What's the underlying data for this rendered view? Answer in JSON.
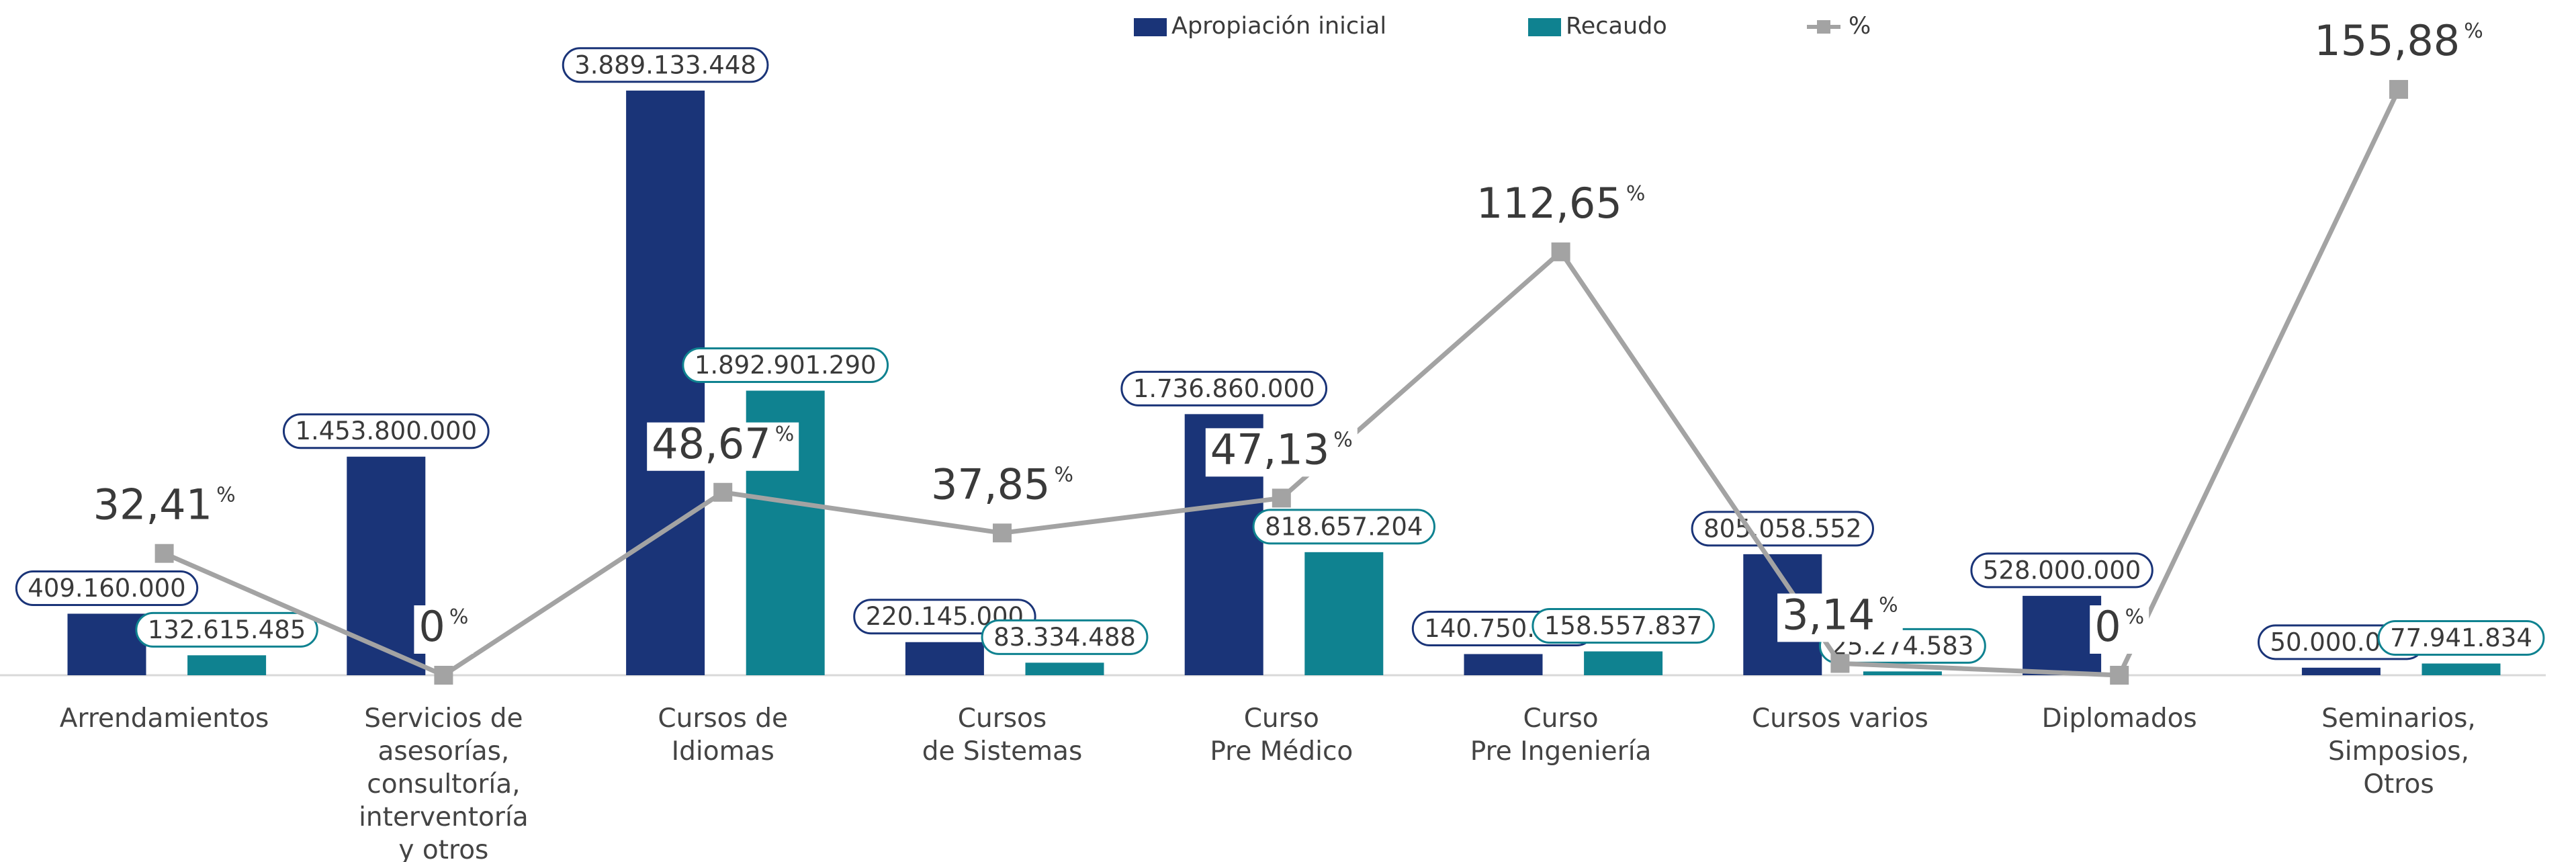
{
  "chart_data": {
    "type": "bar-line",
    "categories": [
      "Arrendamientos",
      "Servicios de\nasesorías,\nconsultoría,\ninterventoría\ny otros",
      "Cursos de\nIdiomas",
      "Cursos\nde Sistemas",
      "Curso\nPre Médico",
      "Curso\nPre Ingeniería",
      "Cursos varios",
      "Diplomados",
      "Seminarios,\nSimposios,\nOtros"
    ],
    "series": [
      {
        "name": "Apropiación inicial",
        "color": "#1a3478",
        "type": "bar",
        "values": [
          409160000,
          1453800000,
          3889133448,
          220145000,
          1736860000,
          140750000,
          805058552,
          528000000,
          50000000
        ],
        "value_labels": [
          "409.160.000",
          "1.453.800.000",
          "3.889.133.448",
          "220.145.000",
          "1.736.860.000",
          "140.750.000",
          "805.058.552",
          "528.000.000",
          "50.000.000"
        ]
      },
      {
        "name": "Recaudo",
        "color": "#0f8290",
        "type": "bar",
        "values": [
          132615485,
          null,
          1892901290,
          83334488,
          818657204,
          158557837,
          25274583,
          null,
          77941834
        ],
        "value_labels": [
          "132.615.485",
          null,
          "1.892.901.290",
          "83.334.488",
          "818.657.204",
          "158.557.837",
          "25.274.583",
          null,
          "77.941.834"
        ]
      },
      {
        "name": "%",
        "color": "#a3a3a3",
        "type": "line",
        "axis": "y2",
        "values": [
          32.41,
          0,
          48.67,
          37.85,
          47.13,
          112.65,
          3.14,
          0,
          155.88
        ],
        "value_labels": [
          "32,41%",
          "0%",
          "48,67%",
          "37,85%",
          "47,13%",
          "112,65%",
          "3,14%",
          "0%",
          "155,88%"
        ]
      }
    ],
    "ylim": [
      0,
      4000000000
    ],
    "y2lim": [
      0,
      160
    ],
    "legend": "top"
  }
}
